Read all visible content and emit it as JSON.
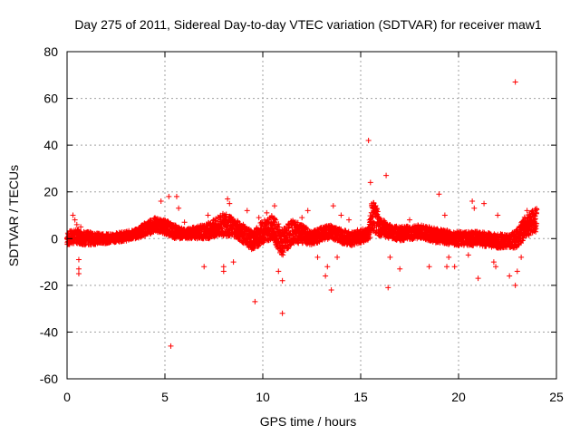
{
  "chart_data": {
    "type": "scatter",
    "title": "Day 275 of 2011, Sidereal Day-to-day VTEC variation (SDTVAR) for receiver maw1",
    "xlabel": "GPS time / hours",
    "ylabel": "SDTVAR / TECUs",
    "xlim": [
      0,
      25
    ],
    "ylim": [
      -60,
      80
    ],
    "xticks": [
      0,
      5,
      10,
      15,
      20,
      25
    ],
    "yticks": [
      -60,
      -40,
      -20,
      0,
      20,
      40,
      60,
      80
    ],
    "grid": true,
    "marker": "+",
    "color": "#ff0000",
    "band": {
      "note": "dense continuous band of points sampled every ~0.005 h",
      "center_x": [
        0,
        0.5,
        1,
        2,
        3,
        3.5,
        4,
        4.5,
        5,
        5.5,
        6,
        7,
        7.5,
        8,
        8.5,
        9,
        9.5,
        10,
        10.5,
        11,
        11.5,
        12,
        12.5,
        13,
        13.5,
        14,
        14.5,
        15,
        15.4,
        15.6,
        16,
        16.5,
        17,
        18,
        19,
        20,
        21,
        22,
        22.5,
        23,
        23.5,
        24
      ],
      "center_y": [
        0,
        1,
        0,
        0,
        1,
        2,
        4,
        6,
        5,
        3,
        2,
        3,
        4,
        6,
        5,
        2,
        -1,
        3,
        5,
        -2,
        3,
        2,
        0,
        2,
        3,
        1,
        0,
        1,
        2,
        10,
        5,
        3,
        2,
        3,
        1,
        0,
        0,
        -1,
        -1,
        0,
        6,
        8
      ],
      "halfwidth": [
        3,
        3,
        3,
        2,
        2,
        2,
        3,
        3,
        3,
        3,
        2,
        3,
        4,
        5,
        4,
        4,
        4,
        5,
        5,
        6,
        5,
        4,
        3,
        3,
        3,
        3,
        3,
        3,
        3,
        8,
        4,
        3,
        3,
        3,
        3,
        3,
        3,
        3,
        3,
        4,
        5,
        5
      ]
    },
    "outliers": [
      [
        0.3,
        10
      ],
      [
        0.4,
        8
      ],
      [
        0.5,
        6
      ],
      [
        0.6,
        -9
      ],
      [
        0.6,
        -13
      ],
      [
        0.6,
        -15
      ],
      [
        0.7,
        5
      ],
      [
        4.8,
        16
      ],
      [
        5.2,
        18
      ],
      [
        5.3,
        -46
      ],
      [
        5.6,
        18
      ],
      [
        5.7,
        13
      ],
      [
        6.0,
        7
      ],
      [
        7.0,
        -12
      ],
      [
        7.2,
        10
      ],
      [
        7.5,
        8
      ],
      [
        8.0,
        -12
      ],
      [
        8.0,
        -14
      ],
      [
        8.2,
        17
      ],
      [
        8.3,
        15
      ],
      [
        8.5,
        -10
      ],
      [
        9.2,
        12
      ],
      [
        9.6,
        -27
      ],
      [
        9.8,
        9
      ],
      [
        10.2,
        11
      ],
      [
        10.6,
        14
      ],
      [
        10.8,
        -14
      ],
      [
        11.0,
        -18
      ],
      [
        11.0,
        -32
      ],
      [
        12.0,
        9
      ],
      [
        12.3,
        12
      ],
      [
        12.8,
        -8
      ],
      [
        13.2,
        -16
      ],
      [
        13.3,
        -12
      ],
      [
        13.5,
        -22
      ],
      [
        13.6,
        14
      ],
      [
        13.8,
        -8
      ],
      [
        14.0,
        10
      ],
      [
        14.4,
        8
      ],
      [
        15.4,
        42
      ],
      [
        15.5,
        24
      ],
      [
        16.3,
        27
      ],
      [
        16.4,
        -21
      ],
      [
        16.5,
        -8
      ],
      [
        17.0,
        -13
      ],
      [
        17.5,
        8
      ],
      [
        18.5,
        -12
      ],
      [
        19.0,
        19
      ],
      [
        19.3,
        10
      ],
      [
        19.4,
        -12
      ],
      [
        19.5,
        -8
      ],
      [
        19.8,
        -12
      ],
      [
        20.5,
        -7
      ],
      [
        20.7,
        16
      ],
      [
        20.8,
        13
      ],
      [
        21.0,
        -17
      ],
      [
        21.3,
        15
      ],
      [
        21.8,
        -10
      ],
      [
        21.9,
        -12
      ],
      [
        22.0,
        10
      ],
      [
        22.9,
        67
      ],
      [
        22.6,
        -16
      ],
      [
        22.9,
        -20
      ],
      [
        23.0,
        -14
      ],
      [
        23.5,
        12
      ],
      [
        23.2,
        -8
      ]
    ]
  }
}
